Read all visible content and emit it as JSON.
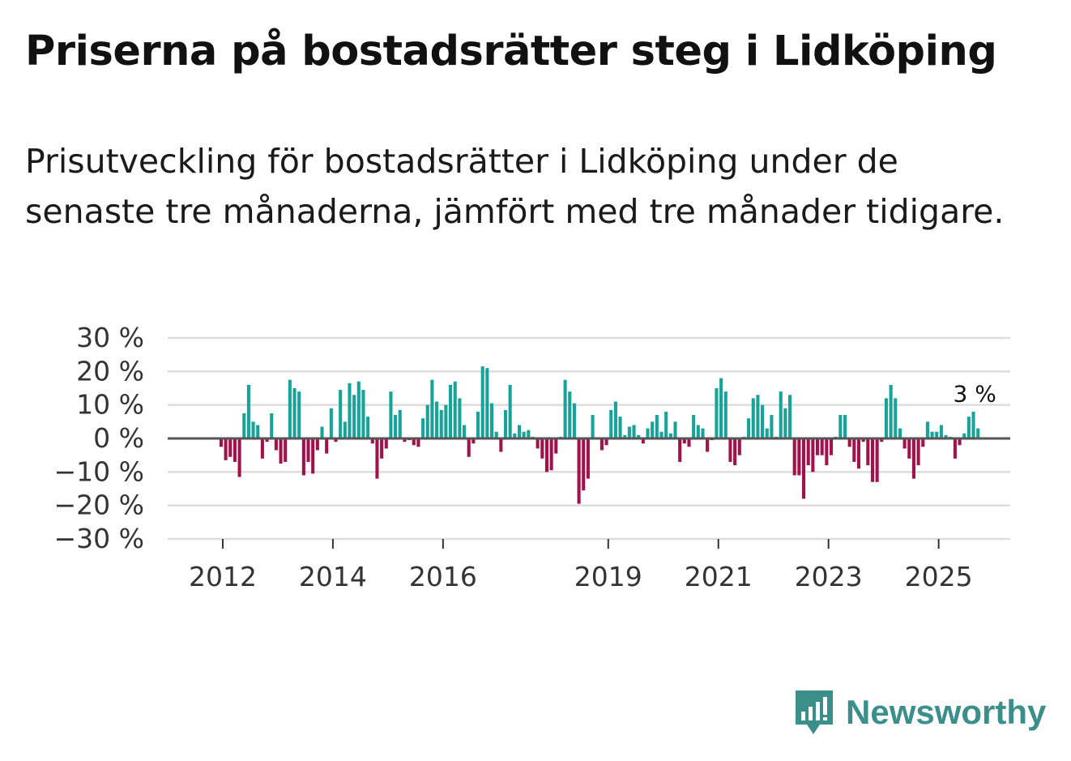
{
  "header": {
    "title": "Priserna på bostadsrätter steg i Lidköping",
    "subtitle": "Prisutveckling för bostadsrätter i Lidköping under de senaste tre månaderna, jämfört med tre månader tidigare."
  },
  "brand": {
    "name": "Newsworthy"
  },
  "colors": {
    "positive": "#16a39a",
    "negative": "#a3114a",
    "grid": "#dddddd",
    "zero": "#555555",
    "brand": "#3a8f8a"
  },
  "chart_data": {
    "type": "bar",
    "title": "Priserna på bostadsrätter steg i Lidköping",
    "xlabel": "",
    "ylabel": "",
    "ylim": [
      -30,
      30
    ],
    "y_ticks": [
      30,
      20,
      10,
      0,
      -10,
      -20,
      -30
    ],
    "y_tick_labels": [
      "30 %",
      "20 %",
      "10 %",
      "0 %",
      "−10 %",
      "−20 %",
      "−30 %"
    ],
    "x_ticks": [
      2012,
      2014,
      2016,
      2019,
      2021,
      2023,
      2025
    ],
    "x_tick_labels": [
      "2012",
      "2014",
      "2016",
      "2019",
      "2021",
      "2023",
      "2025"
    ],
    "x_start": 2011.0,
    "x_end": 2026.3,
    "bar_step_years": 0.0833,
    "first_bar_x": 2011.97,
    "annotation": {
      "label": "3 %",
      "value": 3
    },
    "values": [
      -2.5,
      -6.5,
      -5.5,
      -7,
      -11.5,
      7.5,
      16,
      5,
      4,
      -6,
      -1,
      7.5,
      -3.5,
      -7.5,
      -7,
      17.5,
      15,
      14,
      -11,
      -7,
      -10.5,
      -3.5,
      3.5,
      -4.5,
      9,
      -1,
      14.5,
      5,
      16.5,
      13,
      17,
      14.5,
      6.5,
      -1.5,
      -12,
      -6,
      -3,
      14,
      7,
      8.5,
      -1,
      -0.5,
      -2,
      -2.5,
      6,
      10,
      17.5,
      11,
      8.5,
      10,
      16,
      17,
      12,
      4,
      -5.5,
      -1.5,
      8,
      21.5,
      21,
      10.5,
      2,
      -4,
      8.5,
      16,
      1.5,
      4,
      2,
      2.5,
      0.5,
      -3,
      -6,
      -10,
      -9.5,
      -4.5,
      0.5,
      17.5,
      14,
      10.5,
      -19.5,
      -15.5,
      -12,
      7,
      0,
      -3.5,
      -2,
      8.5,
      11,
      6.5,
      1,
      3.5,
      4,
      1,
      -1.5,
      3,
      5,
      7,
      2,
      8,
      1.5,
      5,
      -7,
      -1.5,
      -2.5,
      7,
      4,
      3,
      -4,
      -0.5,
      15,
      18,
      14,
      -7,
      -8,
      -5,
      0.5,
      6,
      12,
      13,
      10,
      3,
      7,
      0.5,
      14,
      9,
      13,
      -11,
      -11,
      -18,
      -8,
      -10,
      -5,
      -5,
      -8,
      -5,
      0.5,
      7,
      7,
      -2.5,
      -7,
      -9,
      -1,
      -8,
      -13,
      -13,
      -1,
      12,
      16,
      12,
      3,
      -3,
      -6,
      -12,
      -8,
      -2.5,
      5,
      2,
      2,
      4,
      1,
      0.5,
      -6,
      -2,
      1.5,
      6.5,
      8,
      3
    ]
  }
}
